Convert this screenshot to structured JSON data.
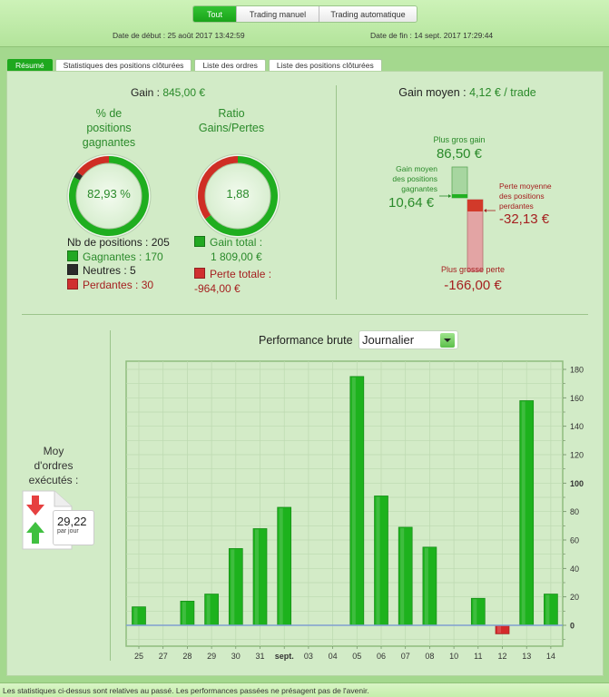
{
  "header": {
    "modes": [
      "Tout",
      "Trading manuel",
      "Trading automatique"
    ],
    "active_mode": "Tout",
    "start_date": "Date de début :  25 août 2017 13:42:59",
    "end_date": "Date de fin :  14 sept. 2017 17:29:44"
  },
  "tabs": [
    "Résumé",
    "Statistiques des positions clôturées",
    "Liste des ordres",
    "Liste des positions clôturées"
  ],
  "summary": {
    "gain_label": "Gain : ",
    "gain_value": "845,00 €",
    "pct_title_1": "% de",
    "pct_title_2": "positions",
    "pct_title_3": "gagnantes",
    "pct_value": "82,93 %",
    "ratio_title_1": "Ratio",
    "ratio_title_2": "Gains/Pertes",
    "ratio_value": "1,88",
    "nb_positions": "Nb de positions : 205",
    "gagnantes": "Gagnantes : 170",
    "neutres": "Neutres : 5",
    "perdantes": "Perdantes : 30",
    "gain_total_label": "Gain total :",
    "gain_total_value": "1 809,00 €",
    "perte_totale_label": "Perte totale :",
    "perte_totale_value": "-964,00 €",
    "counts": {
      "gagnantes": 170,
      "neutres": 5,
      "perdantes": 30
    },
    "totals": {
      "gain": 1809,
      "perte": 964
    }
  },
  "gain_moyen": {
    "label": "Gain moyen : ",
    "value": "4,12 € / trade",
    "plus_gros_gain_label": "Plus gros gain",
    "plus_gros_gain_value": "86,50 €",
    "gain_moyen_pos_label_1": "Gain moyen",
    "gain_moyen_pos_label_2": "des positions",
    "gain_moyen_pos_label_3": "gagnantes",
    "gain_moyen_pos_value": "10,64 €",
    "perte_moyenne_label_1": "Perte moyenne",
    "perte_moyenne_label_2": "des positions",
    "perte_moyenne_label_3": "perdantes",
    "perte_moyenne_value": "-32,13 €",
    "plus_grosse_perte_label": "Plus grosse perte",
    "plus_grosse_perte_value": "-166,00 €"
  },
  "orders": {
    "title_1": "Moy",
    "title_2": "d'ordres",
    "title_3": "exécutés :",
    "value": "29,22",
    "unit": "par jour"
  },
  "performance": {
    "label": "Performance brute",
    "period": "Journalier"
  },
  "chart_data": {
    "type": "bar",
    "title": "Performance brute",
    "categories": [
      "25",
      "27",
      "28",
      "29",
      "30",
      "31",
      "sept.",
      "03",
      "04",
      "05",
      "06",
      "07",
      "08",
      "10",
      "11",
      "12",
      "13",
      "14"
    ],
    "values": [
      13,
      0,
      17,
      22,
      54,
      68,
      83,
      0,
      0,
      175,
      91,
      69,
      55,
      0,
      19,
      -6,
      158,
      22
    ],
    "ylim": [
      -15,
      185
    ],
    "yticks": [
      0,
      20,
      40,
      60,
      80,
      100,
      120,
      140,
      160,
      180
    ],
    "ytick_labels": [
      "0",
      "20",
      "40",
      "60",
      "80",
      "100",
      "120",
      "140",
      "160",
      "180"
    ],
    "grid": true,
    "colors": {
      "positive": "#1db21d",
      "negative": "#d42a2a",
      "zero_line": "#7f9fd0"
    }
  },
  "footer": "Les statistiques ci-dessus sont relatives au passé. Les performances passées ne présagent pas de l'avenir."
}
